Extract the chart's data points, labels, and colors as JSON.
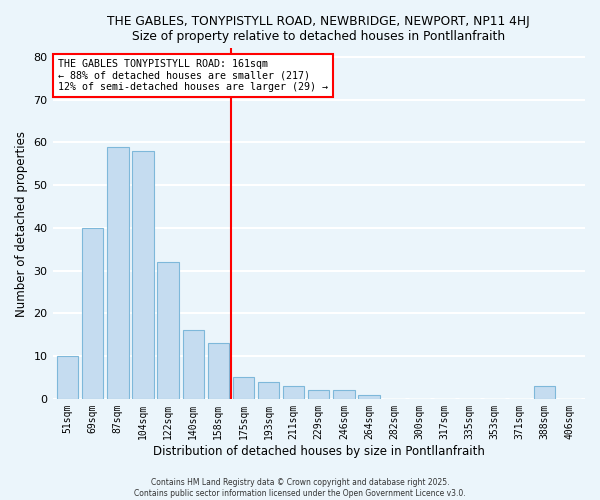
{
  "title1": "THE GABLES, TONYPISTYLL ROAD, NEWBRIDGE, NEWPORT, NP11 4HJ",
  "title2": "Size of property relative to detached houses in Pontllanfraith",
  "xlabel": "Distribution of detached houses by size in Pontllanfraith",
  "ylabel": "Number of detached properties",
  "bar_labels": [
    "51sqm",
    "69sqm",
    "87sqm",
    "104sqm",
    "122sqm",
    "140sqm",
    "158sqm",
    "175sqm",
    "193sqm",
    "211sqm",
    "229sqm",
    "246sqm",
    "264sqm",
    "282sqm",
    "300sqm",
    "317sqm",
    "335sqm",
    "353sqm",
    "371sqm",
    "388sqm",
    "406sqm"
  ],
  "bar_values": [
    10,
    40,
    59,
    58,
    32,
    16,
    13,
    5,
    4,
    3,
    2,
    2,
    1,
    0,
    0,
    0,
    0,
    0,
    0,
    3,
    0
  ],
  "bar_color": "#C5DCF0",
  "bar_edge_color": "#7EB8DA",
  "vline_index": 6.5,
  "vline_color": "red",
  "annotation_title": "THE GABLES TONYPISTYLL ROAD: 161sqm",
  "annotation_line1": "← 88% of detached houses are smaller (217)",
  "annotation_line2": "12% of semi-detached houses are larger (29) →",
  "annotation_box_color": "white",
  "annotation_box_edgecolor": "red",
  "ylim": [
    0,
    82
  ],
  "yticks": [
    0,
    10,
    20,
    30,
    40,
    50,
    60,
    70,
    80
  ],
  "footer1": "Contains HM Land Registry data © Crown copyright and database right 2025.",
  "footer2": "Contains public sector information licensed under the Open Government Licence v3.0.",
  "background_color": "#EBF5FB",
  "grid_color": "white"
}
